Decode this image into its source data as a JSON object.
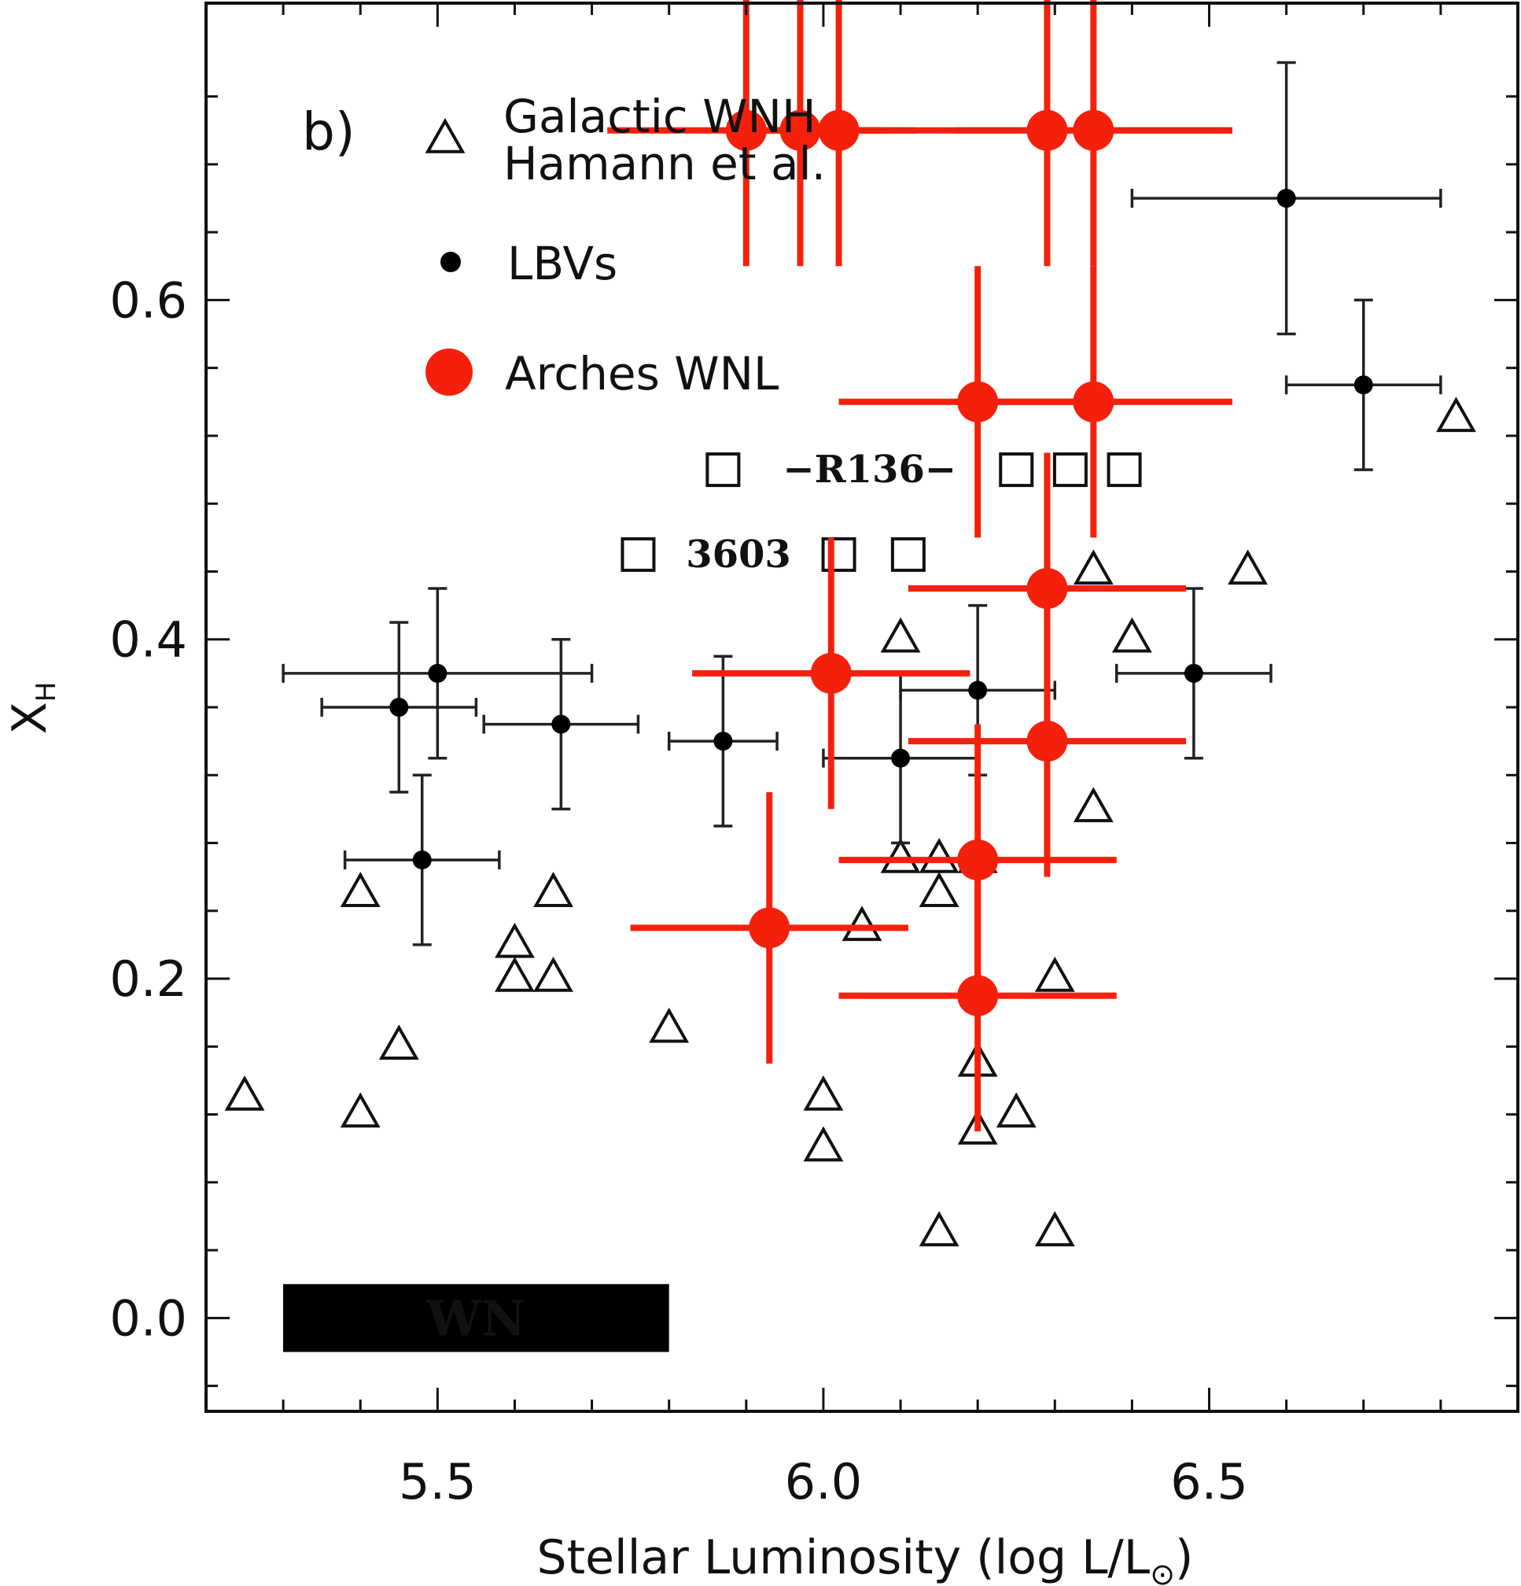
{
  "chart_data": {
    "type": "scatter",
    "panel_label": "b)",
    "xlabel": "Stellar Luminosity (log L/L",
    "xlabel_sun": "⊙",
    "xlabel_close": ")",
    "ylabel": "X",
    "ylabel_sub": "H",
    "xlim": [
      5.2,
      6.9
    ],
    "ylim": [
      -0.055,
      0.775
    ],
    "xticks": [
      {
        "value": 5.5,
        "label": "5.5"
      },
      {
        "value": 6.0,
        "label": "6.0"
      },
      {
        "value": 6.5,
        "label": "6.5"
      }
    ],
    "yticks": [
      {
        "value": 0.0,
        "label": "0.0"
      },
      {
        "value": 0.2,
        "label": "0.2"
      },
      {
        "value": 0.4,
        "label": "0.4"
      },
      {
        "value": 0.6,
        "label": "0.6"
      }
    ],
    "grid": false,
    "legend_position": "top-left",
    "legend": [
      {
        "marker": "open-triangle",
        "lines": [
          "Galactic WNH",
          "Hamann et al."
        ]
      },
      {
        "marker": "small-dot",
        "lines": [
          "LBVs"
        ]
      },
      {
        "marker": "large-red-dot",
        "lines": [
          "Arches WNL"
        ]
      }
    ],
    "series": [
      {
        "name": "Galactic WNH Hamann et al.",
        "marker": "open-triangle",
        "points": [
          [
            5.25,
            0.13
          ],
          [
            5.4,
            0.25
          ],
          [
            5.4,
            0.12
          ],
          [
            5.45,
            0.16
          ],
          [
            5.6,
            0.22
          ],
          [
            5.6,
            0.2
          ],
          [
            5.65,
            0.25
          ],
          [
            5.65,
            0.2
          ],
          [
            5.8,
            0.17
          ],
          [
            6.0,
            0.13
          ],
          [
            6.0,
            0.1
          ],
          [
            6.05,
            0.23
          ],
          [
            6.1,
            0.4
          ],
          [
            6.1,
            0.27
          ],
          [
            6.15,
            0.27
          ],
          [
            6.15,
            0.25
          ],
          [
            6.15,
            0.05
          ],
          [
            6.2,
            0.27
          ],
          [
            6.2,
            0.15
          ],
          [
            6.2,
            0.11
          ],
          [
            6.25,
            0.12
          ],
          [
            6.3,
            0.2
          ],
          [
            6.3,
            0.05
          ],
          [
            6.35,
            0.44
          ],
          [
            6.35,
            0.3
          ],
          [
            6.4,
            0.4
          ],
          [
            6.55,
            0.44
          ],
          [
            6.82,
            0.53
          ]
        ]
      },
      {
        "name": "LBVs",
        "marker": "small-dot",
        "points": [
          {
            "x": 5.45,
            "y": 0.36,
            "xerr": 0.1,
            "yerr": 0.05
          },
          {
            "x": 5.5,
            "y": 0.38,
            "xerr": 0.2,
            "yerr": 0.05
          },
          {
            "x": 5.48,
            "y": 0.27,
            "xerr": 0.1,
            "yerr": 0.05
          },
          {
            "x": 5.66,
            "y": 0.35,
            "xerr": 0.1,
            "yerr": 0.05
          },
          {
            "x": 5.87,
            "y": 0.34,
            "xerr": 0.07,
            "yerr": 0.05
          },
          {
            "x": 6.1,
            "y": 0.33,
            "xerr": 0.1,
            "yerr": 0.05
          },
          {
            "x": 6.2,
            "y": 0.37,
            "xerr": 0.1,
            "yerr": 0.05
          },
          {
            "x": 6.48,
            "y": 0.38,
            "xerr": 0.1,
            "yerr": 0.05
          },
          {
            "x": 6.6,
            "y": 0.66,
            "xerr": 0.2,
            "yerr": 0.08
          },
          {
            "x": 6.7,
            "y": 0.55,
            "xerr": 0.1,
            "yerr": 0.05
          }
        ]
      },
      {
        "name": "Arches WNL",
        "marker": "large-red-dot",
        "color": "#f5200c",
        "points": [
          {
            "x": 5.9,
            "y": 0.7,
            "xerr": 0.18,
            "yerr": 0.08
          },
          {
            "x": 5.97,
            "y": 0.7,
            "xerr": 0.1,
            "yerr": 0.08
          },
          {
            "x": 6.02,
            "y": 0.7,
            "xerr": 0.1,
            "yerr": 0.08
          },
          {
            "x": 6.29,
            "y": 0.7,
            "xerr": 0.24,
            "yerr": 0.08
          },
          {
            "x": 6.35,
            "y": 0.7,
            "xerr": 0.18,
            "yerr": 0.08
          },
          {
            "x": 6.2,
            "y": 0.54,
            "xerr": 0.18,
            "yerr": 0.08
          },
          {
            "x": 6.35,
            "y": 0.54,
            "xerr": 0.18,
            "yerr": 0.08
          },
          {
            "x": 6.29,
            "y": 0.43,
            "xerr": 0.18,
            "yerr": 0.08
          },
          {
            "x": 6.01,
            "y": 0.38,
            "xerr": 0.18,
            "yerr": 0.08
          },
          {
            "x": 6.29,
            "y": 0.34,
            "xerr": 0.18,
            "yerr": 0.08
          },
          {
            "x": 6.2,
            "y": 0.27,
            "xerr": 0.18,
            "yerr": 0.08
          },
          {
            "x": 5.93,
            "y": 0.23,
            "xerr": 0.18,
            "yerr": 0.08
          },
          {
            "x": 6.2,
            "y": 0.19,
            "xerr": 0.18,
            "yerr": 0.08
          }
        ]
      },
      {
        "name": "R136",
        "marker": "open-square",
        "points": [
          [
            5.87,
            0.5
          ],
          [
            6.25,
            0.5
          ],
          [
            6.32,
            0.5
          ],
          [
            6.39,
            0.5
          ]
        ]
      },
      {
        "name": "3603",
        "marker": "open-square",
        "points": [
          [
            5.76,
            0.45
          ],
          [
            6.02,
            0.45
          ],
          [
            6.11,
            0.45
          ]
        ]
      }
    ],
    "annotations": [
      {
        "text": "−R136−",
        "x": 6.06,
        "y": 0.5
      },
      {
        "text": "3603",
        "x": 5.89,
        "y": 0.45
      }
    ],
    "regions": [
      {
        "label": "WN",
        "x_range": [
          5.2,
          5.8
        ],
        "y_range": [
          -0.02,
          0.02
        ]
      }
    ]
  }
}
